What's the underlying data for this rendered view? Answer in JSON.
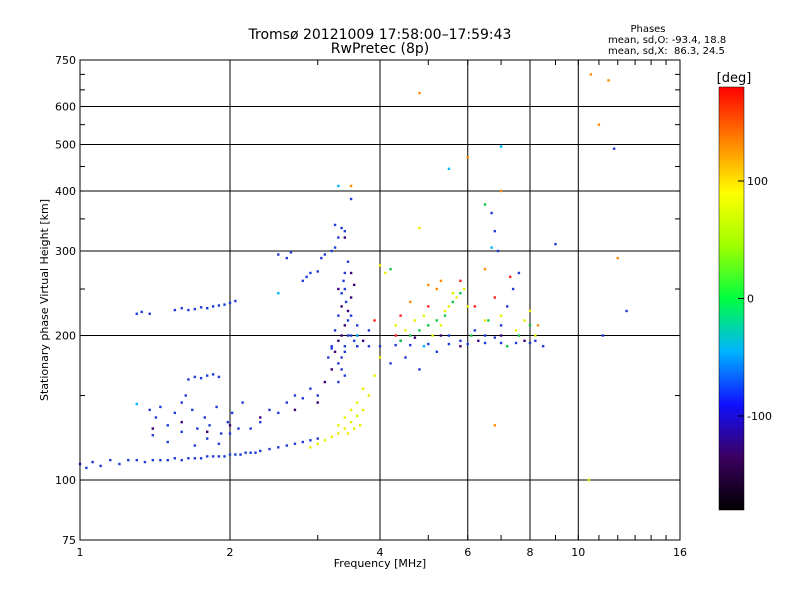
{
  "chart_data": {
    "type": "scatter",
    "title": "Tromsø 20121009 17:58:00–17:59:43",
    "subtitle": "RwPretec (8p)",
    "xlabel": "Frequency [MHz]",
    "ylabel": "Stationary phase Virtual Height [km]",
    "x_scale": "log",
    "y_scale": "log",
    "xlim": [
      1,
      16
    ],
    "ylim": [
      75,
      750
    ],
    "grid": true,
    "x_ticks": [
      1,
      2,
      4,
      6,
      8,
      10,
      16
    ],
    "x_tick_labels": [
      "1",
      "2",
      "4",
      "6",
      "8",
      "10",
      "16"
    ],
    "y_ticks": [
      75,
      100,
      200,
      300,
      400,
      500,
      600,
      750
    ],
    "y_tick_labels": [
      "75",
      "100",
      "200",
      "300",
      "400",
      "500",
      "600",
      "750"
    ],
    "legend": {
      "title": "Phases",
      "line1": "mean, sd,O: -93.4, 18.8",
      "line2": "mean, sd,X:  86.3, 24.5",
      "placement": "top-right"
    },
    "colorbar": {
      "label": "[deg]",
      "ticks": [
        100,
        0,
        -100
      ],
      "tick_labels": [
        "100",
        "0",
        "-100"
      ],
      "range": [
        -180,
        180
      ],
      "colors": [
        "#000000",
        "#3c0060",
        "#1010ff",
        "#00b4ff",
        "#00ff40",
        "#a0ff00",
        "#ffff00",
        "#ff8000",
        "#ff0000"
      ]
    },
    "series": [
      {
        "color": "#1e3cd8",
        "points": [
          [
            1.0,
            108
          ],
          [
            1.03,
            106
          ],
          [
            1.06,
            109
          ],
          [
            1.1,
            107
          ],
          [
            1.15,
            110
          ],
          [
            1.2,
            108
          ],
          [
            1.25,
            110
          ],
          [
            1.3,
            110
          ],
          [
            1.35,
            109
          ],
          [
            1.4,
            110
          ],
          [
            1.45,
            110
          ],
          [
            1.5,
            110
          ],
          [
            1.55,
            111
          ],
          [
            1.6,
            110
          ],
          [
            1.65,
            111
          ],
          [
            1.7,
            111
          ],
          [
            1.75,
            111
          ],
          [
            1.8,
            112
          ],
          [
            1.85,
            112
          ],
          [
            1.9,
            112
          ],
          [
            1.95,
            112
          ],
          [
            2.0,
            113
          ],
          [
            2.05,
            113
          ],
          [
            2.1,
            113
          ],
          [
            2.15,
            114
          ],
          [
            2.2,
            114
          ],
          [
            2.25,
            114
          ],
          [
            2.3,
            115
          ],
          [
            2.4,
            116
          ],
          [
            2.5,
            117
          ],
          [
            2.6,
            118
          ],
          [
            2.7,
            119
          ],
          [
            2.8,
            120
          ],
          [
            2.9,
            121
          ],
          [
            3.0,
            122
          ],
          [
            1.3,
            222
          ],
          [
            1.33,
            224
          ],
          [
            1.38,
            222
          ],
          [
            1.55,
            226
          ],
          [
            1.6,
            228
          ],
          [
            1.65,
            226
          ],
          [
            1.7,
            227
          ],
          [
            1.75,
            229
          ],
          [
            1.8,
            228
          ],
          [
            1.85,
            230
          ],
          [
            1.9,
            231
          ],
          [
            1.95,
            232
          ],
          [
            2.0,
            234
          ],
          [
            2.05,
            236
          ],
          [
            1.38,
            140
          ],
          [
            1.42,
            135
          ],
          [
            1.45,
            142
          ],
          [
            1.5,
            130
          ],
          [
            1.55,
            138
          ],
          [
            1.6,
            145
          ],
          [
            1.63,
            150
          ],
          [
            1.68,
            140
          ],
          [
            1.72,
            128
          ],
          [
            1.78,
            135
          ],
          [
            1.82,
            130
          ],
          [
            1.88,
            142
          ],
          [
            1.92,
            125
          ],
          [
            1.98,
            132
          ],
          [
            2.02,
            138
          ],
          [
            2.08,
            128
          ],
          [
            2.12,
            145
          ],
          [
            1.4,
            124
          ],
          [
            1.5,
            120
          ],
          [
            1.6,
            126
          ],
          [
            1.7,
            118
          ],
          [
            1.8,
            122
          ],
          [
            1.9,
            119
          ],
          [
            2.0,
            125
          ],
          [
            2.2,
            128
          ],
          [
            2.3,
            132
          ],
          [
            2.4,
            140
          ],
          [
            2.5,
            138
          ],
          [
            2.6,
            145
          ],
          [
            2.7,
            150
          ],
          [
            2.8,
            148
          ],
          [
            2.9,
            155
          ],
          [
            3.0,
            150
          ],
          [
            1.65,
            162
          ],
          [
            1.7,
            164
          ],
          [
            1.75,
            163
          ],
          [
            1.8,
            165
          ],
          [
            1.85,
            166
          ],
          [
            1.9,
            164
          ],
          [
            2.8,
            260
          ],
          [
            2.85,
            265
          ],
          [
            2.9,
            270
          ],
          [
            3.0,
            272
          ],
          [
            3.05,
            290
          ],
          [
            3.1,
            295
          ],
          [
            3.2,
            300
          ],
          [
            3.25,
            305
          ],
          [
            3.3,
            320
          ],
          [
            3.35,
            335
          ],
          [
            3.4,
            330
          ],
          [
            3.25,
            340
          ],
          [
            3.5,
            385
          ],
          [
            2.6,
            290
          ],
          [
            2.5,
            295
          ],
          [
            2.65,
            298
          ],
          [
            3.15,
            180
          ],
          [
            3.2,
            190
          ],
          [
            3.25,
            205
          ],
          [
            3.3,
            220
          ],
          [
            3.35,
            245
          ],
          [
            3.38,
            260
          ],
          [
            3.4,
            250
          ],
          [
            3.42,
            235
          ],
          [
            3.45,
            215
          ],
          [
            3.5,
            200
          ],
          [
            3.55,
            195
          ],
          [
            3.6,
            190
          ],
          [
            3.3,
            175
          ],
          [
            3.35,
            170
          ],
          [
            3.4,
            165
          ],
          [
            3.3,
            160
          ],
          [
            3.35,
            180
          ],
          [
            3.4,
            185
          ],
          [
            3.45,
            200
          ],
          [
            3.5,
            220
          ],
          [
            3.4,
            270
          ],
          [
            3.45,
            285
          ],
          [
            3.2,
            188
          ],
          [
            3.4,
            190
          ],
          [
            3.6,
            190
          ],
          [
            3.8,
            190
          ],
          [
            4.0,
            190
          ],
          [
            4.3,
            191
          ],
          [
            4.6,
            191
          ],
          [
            5.0,
            192
          ],
          [
            5.5,
            192
          ],
          [
            6.0,
            192
          ],
          [
            6.5,
            193
          ],
          [
            7.0,
            193
          ],
          [
            7.5,
            193
          ],
          [
            8.0,
            193
          ],
          [
            3.6,
            210
          ],
          [
            3.8,
            205
          ],
          [
            4.2,
            175
          ],
          [
            4.5,
            180
          ],
          [
            4.8,
            170
          ],
          [
            5.2,
            185
          ],
          [
            5.5,
            200
          ],
          [
            5.8,
            195
          ],
          [
            6.2,
            205
          ],
          [
            6.5,
            200
          ],
          [
            6.8,
            198
          ],
          [
            7.0,
            210
          ],
          [
            7.2,
            230
          ],
          [
            7.4,
            250
          ],
          [
            7.6,
            270
          ],
          [
            6.9,
            300
          ],
          [
            6.8,
            330
          ],
          [
            6.7,
            360
          ],
          [
            9.0,
            310
          ],
          [
            11.2,
            200
          ],
          [
            11.8,
            490
          ],
          [
            12.5,
            225
          ],
          [
            8.2,
            195
          ],
          [
            8.5,
            190
          ]
        ]
      },
      {
        "color": "#3c0078",
        "points": [
          [
            1.4,
            128
          ],
          [
            1.6,
            132
          ],
          [
            1.8,
            126
          ],
          [
            2.0,
            130
          ],
          [
            2.3,
            135
          ],
          [
            2.7,
            140
          ],
          [
            3.0,
            145
          ],
          [
            3.1,
            160
          ],
          [
            3.2,
            170
          ],
          [
            3.25,
            185
          ],
          [
            3.3,
            195
          ],
          [
            3.35,
            200
          ],
          [
            3.4,
            210
          ],
          [
            3.45,
            225
          ],
          [
            3.5,
            240
          ],
          [
            3.55,
            255
          ],
          [
            3.5,
            270
          ],
          [
            3.3,
            250
          ],
          [
            3.35,
            230
          ],
          [
            3.6,
            200
          ],
          [
            3.7,
            195
          ],
          [
            4.4,
            195
          ],
          [
            4.7,
            198
          ],
          [
            5.3,
            200
          ],
          [
            5.8,
            190
          ],
          [
            6.3,
            195
          ],
          [
            7.0,
            200
          ],
          [
            7.8,
            195
          ],
          [
            3.4,
            320
          ]
        ]
      },
      {
        "color": "#e8f000",
        "points": [
          [
            2.9,
            117
          ],
          [
            3.0,
            119
          ],
          [
            3.1,
            121
          ],
          [
            3.2,
            123
          ],
          [
            3.3,
            125
          ],
          [
            3.4,
            128
          ],
          [
            3.5,
            132
          ],
          [
            3.6,
            136
          ],
          [
            3.7,
            140
          ],
          [
            3.8,
            150
          ],
          [
            3.9,
            165
          ],
          [
            4.0,
            180
          ],
          [
            3.3,
            130
          ],
          [
            3.4,
            135
          ],
          [
            3.5,
            140
          ],
          [
            3.6,
            145
          ],
          [
            3.7,
            155
          ],
          [
            3.45,
            125
          ],
          [
            3.55,
            128
          ],
          [
            3.65,
            130
          ],
          [
            4.0,
            280
          ],
          [
            4.1,
            270
          ],
          [
            4.3,
            210
          ],
          [
            4.5,
            205
          ],
          [
            4.7,
            215
          ],
          [
            4.9,
            220
          ],
          [
            5.1,
            200
          ],
          [
            5.3,
            210
          ],
          [
            5.5,
            230
          ],
          [
            5.7,
            240
          ],
          [
            5.9,
            250
          ],
          [
            5.6,
            245
          ],
          [
            5.4,
            225
          ],
          [
            6.0,
            230
          ],
          [
            6.5,
            215
          ],
          [
            7.0,
            220
          ],
          [
            7.5,
            205
          ],
          [
            7.8,
            215
          ],
          [
            8.0,
            225
          ],
          [
            4.8,
            335
          ],
          [
            8.2,
            200
          ],
          [
            10.5,
            100
          ]
        ]
      },
      {
        "color": "#10c840",
        "points": [
          [
            4.4,
            195
          ],
          [
            4.6,
            200
          ],
          [
            4.8,
            205
          ],
          [
            5.0,
            210
          ],
          [
            5.2,
            215
          ],
          [
            5.4,
            220
          ],
          [
            5.6,
            235
          ],
          [
            5.8,
            245
          ],
          [
            6.1,
            200
          ],
          [
            6.6,
            215
          ],
          [
            7.2,
            190
          ],
          [
            7.6,
            200
          ],
          [
            8.0,
            210
          ],
          [
            6.5,
            375
          ],
          [
            4.2,
            275
          ]
        ]
      },
      {
        "color": "#ff8c00",
        "points": [
          [
            3.5,
            410
          ],
          [
            4.6,
            235
          ],
          [
            5.0,
            255
          ],
          [
            5.3,
            260
          ],
          [
            6.0,
            470
          ],
          [
            6.5,
            275
          ],
          [
            7.0,
            400
          ],
          [
            8.3,
            210
          ],
          [
            5.2,
            250
          ],
          [
            11.0,
            550
          ],
          [
            11.5,
            680
          ],
          [
            12.0,
            290
          ],
          [
            4.8,
            640
          ],
          [
            6.8,
            130
          ],
          [
            10.6,
            700
          ]
        ]
      },
      {
        "color": "#ff2020",
        "points": [
          [
            3.9,
            215
          ],
          [
            4.4,
            220
          ],
          [
            5.8,
            260
          ],
          [
            6.2,
            230
          ],
          [
            6.8,
            240
          ],
          [
            7.3,
            265
          ],
          [
            5.0,
            230
          ],
          [
            4.3,
            200
          ]
        ]
      },
      {
        "color": "#00b4ff",
        "points": [
          [
            3.3,
            410
          ],
          [
            5.5,
            445
          ],
          [
            6.7,
            305
          ],
          [
            7.0,
            495
          ],
          [
            2.5,
            245
          ],
          [
            1.3,
            144
          ],
          [
            3.6,
            200
          ],
          [
            4.9,
            190
          ]
        ]
      }
    ]
  }
}
